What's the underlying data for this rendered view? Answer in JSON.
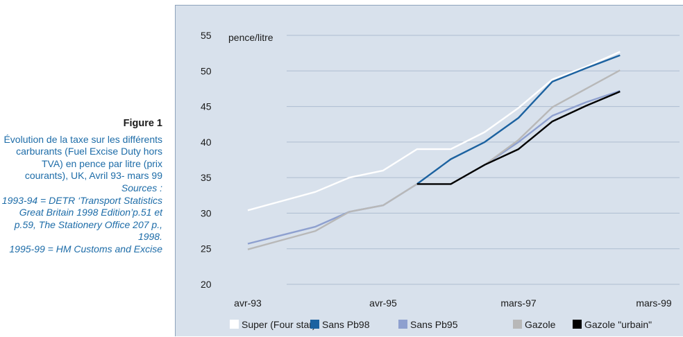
{
  "caption": {
    "label": "Figure 1",
    "description": "Évolution de la taxe sur les différents carburants (Fuel Excise Duty hors TVA) en pence par litre (prix courants), UK, Avril 93- mars 99",
    "sources_label": "Sources :",
    "sources_1": "1993-94 = DETR ‘Transport Statistics Great Britain 1998 Edition’p.51 et p.59, The Stationery Office 207 p., 1998.",
    "sources_2": "1995-99 = HM Customs and Excise"
  },
  "chart_data": {
    "type": "line",
    "ylabel": "pence/litre",
    "ylim": [
      20,
      55
    ],
    "yticks": [
      20,
      25,
      30,
      35,
      40,
      45,
      50,
      55
    ],
    "x": [
      0,
      1,
      2,
      3,
      4,
      5,
      6,
      7,
      8,
      9,
      10,
      11,
      12
    ],
    "xticks": [
      {
        "x": 0,
        "label": "avr-93"
      },
      {
        "x": 4,
        "label": "avr-95"
      },
      {
        "x": 8,
        "label": "mars-97"
      },
      {
        "x": 12,
        "label": "mars-99"
      }
    ],
    "grid": true,
    "legend_position": "bottom",
    "series": [
      {
        "name": "Super (Four star)",
        "color": "#ffffff",
        "values": [
          30.4,
          31.7,
          33.0,
          35.0,
          36.0,
          39.0,
          39.0,
          41.4,
          44.8,
          48.8,
          50.6,
          52.7,
          null
        ]
      },
      {
        "name": "Sans Pb98",
        "color": "#1c62a0",
        "values": [
          null,
          null,
          null,
          null,
          null,
          34.1,
          37.6,
          40.0,
          43.4,
          48.5,
          50.4,
          52.2,
          null
        ]
      },
      {
        "name": "Sans Pb95",
        "color": "#8ea0cf",
        "values": [
          25.7,
          26.9,
          28.1,
          30.2,
          31.1,
          34.1,
          null,
          36.8,
          40.0,
          43.7,
          45.6,
          47.2,
          null
        ]
      },
      {
        "name": "Gazole",
        "color": "#b8b8b8",
        "values": [
          24.9,
          26.2,
          27.5,
          30.2,
          31.1,
          34.1,
          null,
          36.8,
          40.3,
          44.9,
          47.5,
          50.1,
          null
        ]
      },
      {
        "name": "Gazole \"urbain\"",
        "color": "#000000",
        "values": [
          null,
          null,
          null,
          null,
          null,
          34.1,
          34.1,
          36.8,
          39.0,
          42.9,
          45.1,
          47.1,
          null
        ]
      }
    ]
  }
}
